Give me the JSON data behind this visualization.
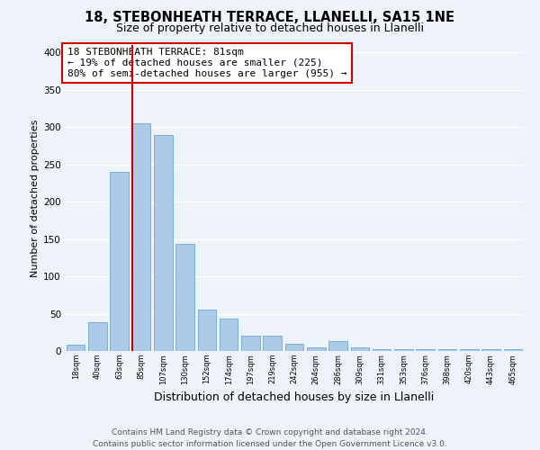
{
  "title": "18, STEBONHEATH TERRACE, LLANELLI, SA15 1NE",
  "subtitle": "Size of property relative to detached houses in Llanelli",
  "xlabel": "Distribution of detached houses by size in Llanelli",
  "ylabel": "Number of detached properties",
  "bin_labels": [
    "18sqm",
    "40sqm",
    "63sqm",
    "85sqm",
    "107sqm",
    "130sqm",
    "152sqm",
    "174sqm",
    "197sqm",
    "219sqm",
    "242sqm",
    "264sqm",
    "286sqm",
    "309sqm",
    "331sqm",
    "353sqm",
    "376sqm",
    "398sqm",
    "420sqm",
    "443sqm",
    "465sqm"
  ],
  "bar_heights": [
    8,
    38,
    240,
    305,
    290,
    143,
    55,
    44,
    20,
    20,
    10,
    5,
    13,
    5,
    2,
    2,
    2,
    2,
    2,
    2,
    2
  ],
  "bar_color": "#adc9e8",
  "bar_edge_color": "#7aafd4",
  "vline_color": "#cc0000",
  "annotation_text": "18 STEBONHEATH TERRACE: 81sqm\n← 19% of detached houses are smaller (225)\n80% of semi-detached houses are larger (955) →",
  "annotation_box_color": "#ffffff",
  "annotation_box_edge_color": "#cc0000",
  "ylim": [
    0,
    410
  ],
  "yticks": [
    0,
    50,
    100,
    150,
    200,
    250,
    300,
    350,
    400
  ],
  "footer_line1": "Contains HM Land Registry data © Crown copyright and database right 2024.",
  "footer_line2": "Contains public sector information licensed under the Open Government Licence v3.0.",
  "background_color": "#eef2f9",
  "grid_color": "#ffffff",
  "title_fontsize": 10.5,
  "subtitle_fontsize": 9,
  "annotation_fontsize": 8,
  "footer_fontsize": 6.5,
  "ylabel_fontsize": 8,
  "xlabel_fontsize": 9
}
